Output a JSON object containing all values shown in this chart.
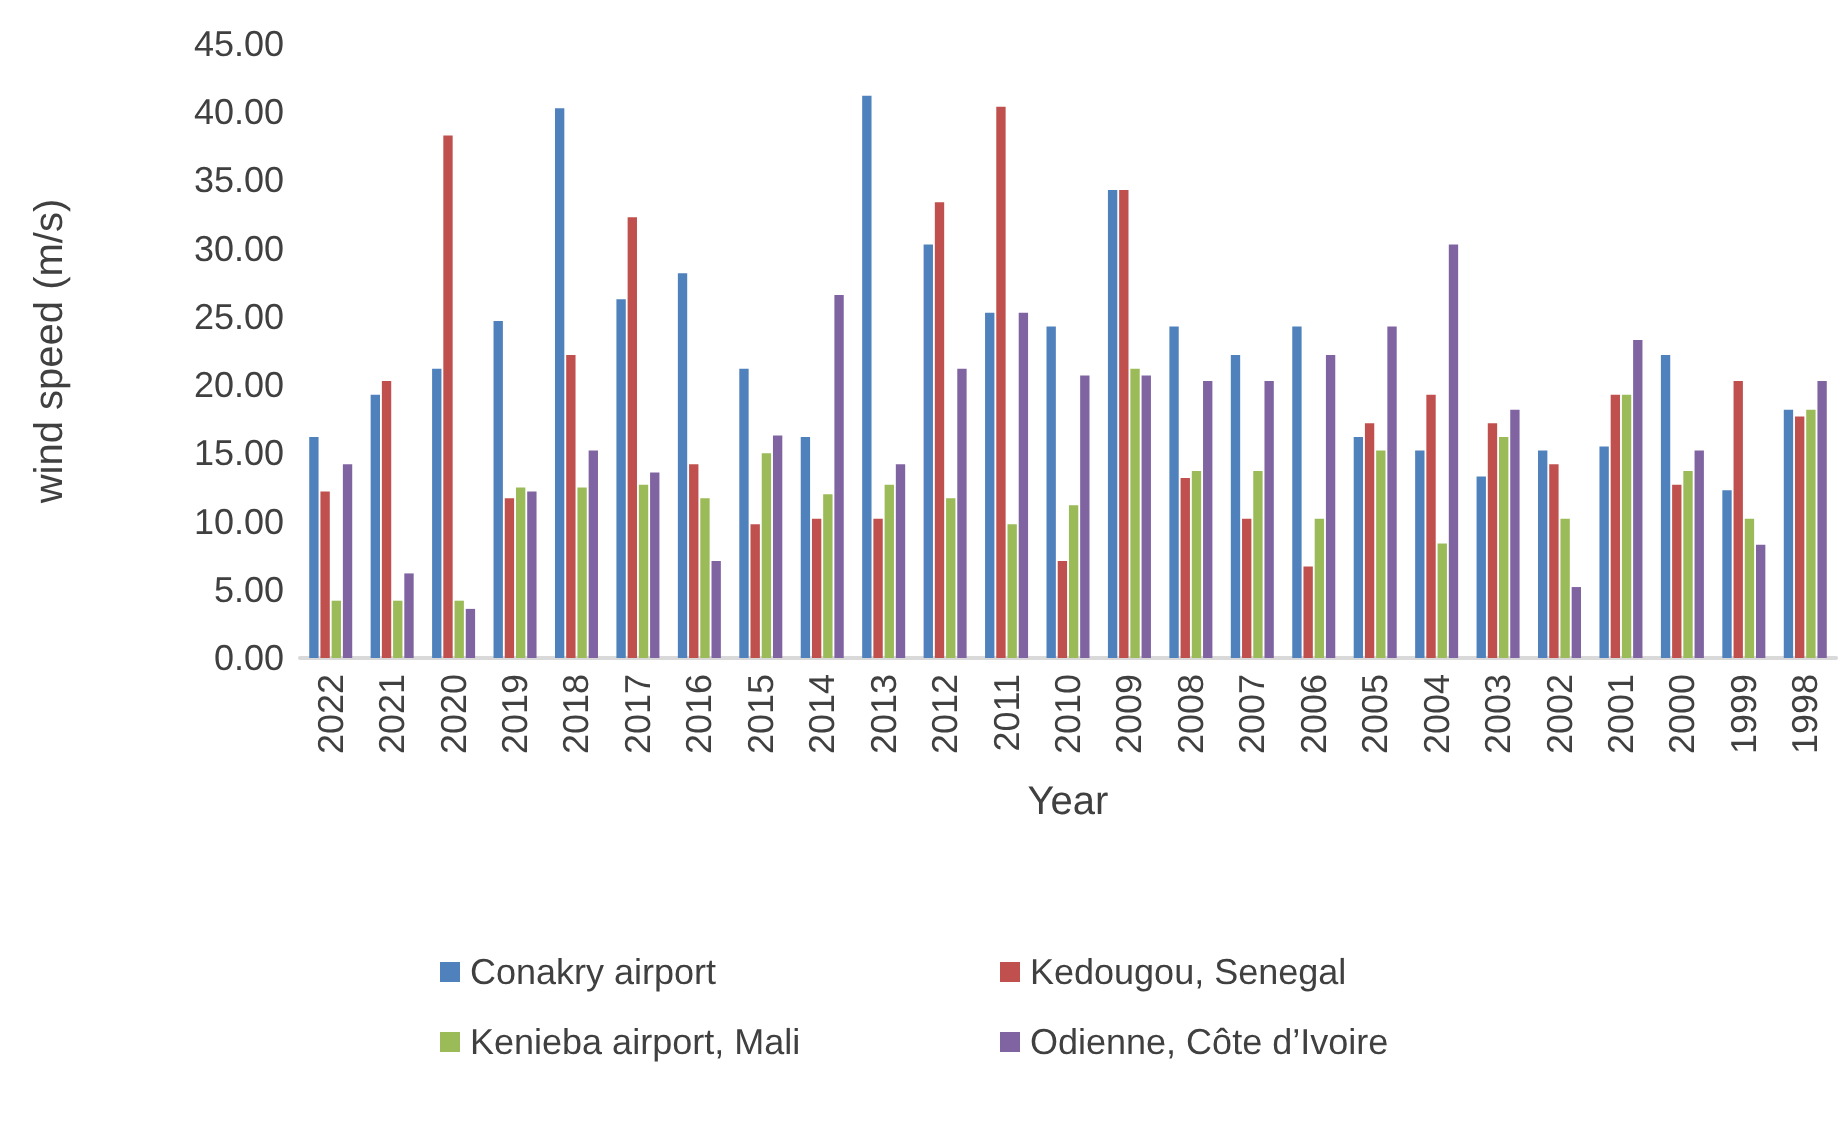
{
  "chart_data": {
    "type": "bar",
    "xlabel": "Year",
    "ylabel": "wind speed (m/s)",
    "categories": [
      "2022",
      "2021",
      "2020",
      "2019",
      "2018",
      "2017",
      "2016",
      "2015",
      "2014",
      "2013",
      "2012",
      "2011",
      "2010",
      "2009",
      "2008",
      "2007",
      "2006",
      "2005",
      "2004",
      "2003",
      "2002",
      "2001",
      "2000",
      "1999",
      "1998"
    ],
    "series": [
      {
        "name": "Conakry airport",
        "color": "#4f81bd",
        "values": [
          16.2,
          19.3,
          21.2,
          24.7,
          40.3,
          26.3,
          28.2,
          21.2,
          16.2,
          41.2,
          30.3,
          25.3,
          24.3,
          34.3,
          24.3,
          22.2,
          24.3,
          16.2,
          15.2,
          13.3,
          15.2,
          15.5,
          22.2,
          12.3,
          18.2
        ]
      },
      {
        "name": "Kedougou, Senegal",
        "color": "#c0504d",
        "values": [
          12.2,
          20.3,
          38.3,
          11.7,
          22.2,
          32.3,
          14.2,
          9.8,
          10.2,
          10.2,
          33.4,
          40.4,
          7.1,
          34.3,
          13.2,
          10.2,
          6.7,
          17.2,
          19.3,
          17.2,
          14.2,
          19.3,
          12.7,
          20.3,
          17.7
        ]
      },
      {
        "name": "Kenieba airport, Mali",
        "color": "#9bbb59",
        "values": [
          4.2,
          4.2,
          4.2,
          12.5,
          12.5,
          12.7,
          11.7,
          15.0,
          12.0,
          12.7,
          11.7,
          9.8,
          11.2,
          21.2,
          13.7,
          13.7,
          10.2,
          15.2,
          8.4,
          16.2,
          10.2,
          19.3,
          13.7,
          10.2,
          18.2
        ]
      },
      {
        "name": "Odienne, Côte d’Ivoire",
        "color": "#8064a2",
        "values": [
          14.2,
          6.2,
          3.6,
          12.2,
          15.2,
          13.6,
          7.1,
          16.3,
          26.6,
          14.2,
          21.2,
          25.3,
          20.7,
          20.7,
          20.3,
          20.3,
          22.2,
          24.3,
          30.3,
          18.2,
          5.2,
          23.3,
          15.2,
          8.3,
          20.3
        ]
      }
    ],
    "ylim": [
      0,
      45
    ],
    "yticks": [
      {
        "value": 0,
        "label": "0.00"
      },
      {
        "value": 5,
        "label": "5.00"
      },
      {
        "value": 10,
        "label": "10.00"
      },
      {
        "value": 15,
        "label": "15.00"
      },
      {
        "value": 20,
        "label": "20.00"
      },
      {
        "value": 25,
        "label": "25.00"
      },
      {
        "value": 30,
        "label": "30.00"
      },
      {
        "value": 35,
        "label": "35.00"
      },
      {
        "value": 40,
        "label": "40.00"
      },
      {
        "value": 45,
        "label": "45.00"
      }
    ],
    "grid": false,
    "legend": "bottom"
  }
}
